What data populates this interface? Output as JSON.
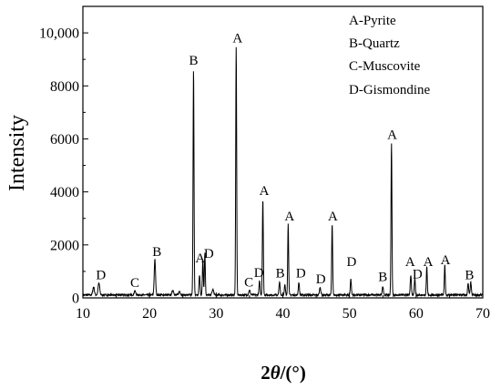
{
  "chart_data": {
    "type": "line",
    "title": "",
    "xlabel_main": "2",
    "xlabel_theta": "θ",
    "xlabel_unit": "/(°)",
    "ylabel": "Intensity",
    "xlim": [
      10,
      70
    ],
    "ylim": [
      0,
      11000
    ],
    "x_ticks": [
      10,
      20,
      30,
      40,
      50,
      60,
      70
    ],
    "x_tick_labels": [
      "10",
      "20",
      "30",
      "40",
      "50",
      "60",
      "70"
    ],
    "y_ticks": [
      0,
      2000,
      4000,
      6000,
      8000,
      10000
    ],
    "y_tick_labels": [
      "0",
      "2000",
      "4000",
      "6000",
      "8000",
      "10,000"
    ],
    "grid": false,
    "legend_position": "top-right",
    "legend": [
      "A-Pyrite",
      "B-Quartz",
      "C-Muscovite",
      "D-Gismondine"
    ],
    "peaks": [
      {
        "x": 11.6,
        "y": 300,
        "w": 0.12
      },
      {
        "x": 12.4,
        "y": 450,
        "w": 0.12
      },
      {
        "x": 17.8,
        "y": 150,
        "w": 0.12
      },
      {
        "x": 20.8,
        "y": 1330,
        "w": 0.1
      },
      {
        "x": 23.5,
        "y": 180,
        "w": 0.12
      },
      {
        "x": 24.5,
        "y": 140,
        "w": 0.12
      },
      {
        "x": 26.6,
        "y": 8550,
        "w": 0.07
      },
      {
        "x": 27.5,
        "y": 750,
        "w": 0.08
      },
      {
        "x": 28.0,
        "y": 1350,
        "w": 0.07
      },
      {
        "x": 28.3,
        "y": 1600,
        "w": 0.07
      },
      {
        "x": 29.5,
        "y": 200,
        "w": 0.12
      },
      {
        "x": 33.0,
        "y": 9400,
        "w": 0.07
      },
      {
        "x": 35.0,
        "y": 170,
        "w": 0.12
      },
      {
        "x": 36.5,
        "y": 520,
        "w": 0.08
      },
      {
        "x": 37.0,
        "y": 3650,
        "w": 0.07
      },
      {
        "x": 39.5,
        "y": 500,
        "w": 0.08
      },
      {
        "x": 40.3,
        "y": 380,
        "w": 0.08
      },
      {
        "x": 40.8,
        "y": 2680,
        "w": 0.07
      },
      {
        "x": 42.4,
        "y": 480,
        "w": 0.08
      },
      {
        "x": 45.6,
        "y": 280,
        "w": 0.1
      },
      {
        "x": 47.4,
        "y": 2680,
        "w": 0.07
      },
      {
        "x": 50.2,
        "y": 600,
        "w": 0.08
      },
      {
        "x": 55.0,
        "y": 300,
        "w": 0.1
      },
      {
        "x": 56.3,
        "y": 5750,
        "w": 0.07
      },
      {
        "x": 59.2,
        "y": 770,
        "w": 0.08
      },
      {
        "x": 59.8,
        "y": 620,
        "w": 0.08
      },
      {
        "x": 61.6,
        "y": 1050,
        "w": 0.07
      },
      {
        "x": 64.3,
        "y": 1150,
        "w": 0.07
      },
      {
        "x": 67.8,
        "y": 430,
        "w": 0.08
      },
      {
        "x": 68.2,
        "y": 480,
        "w": 0.08
      }
    ],
    "peak_labels": [
      {
        "x": 12.7,
        "y": 560,
        "label": "D"
      },
      {
        "x": 17.8,
        "y": 270,
        "label": "C"
      },
      {
        "x": 21.1,
        "y": 1450,
        "label": "B"
      },
      {
        "x": 26.6,
        "y": 8660,
        "label": "B"
      },
      {
        "x": 27.6,
        "y": 1200,
        "label": "A"
      },
      {
        "x": 28.9,
        "y": 1380,
        "label": "D"
      },
      {
        "x": 33.2,
        "y": 9500,
        "label": "A"
      },
      {
        "x": 34.9,
        "y": 300,
        "label": "C"
      },
      {
        "x": 36.4,
        "y": 650,
        "label": "D"
      },
      {
        "x": 37.2,
        "y": 3750,
        "label": "A"
      },
      {
        "x": 39.6,
        "y": 630,
        "label": "B"
      },
      {
        "x": 41.0,
        "y": 2790,
        "label": "A"
      },
      {
        "x": 42.7,
        "y": 630,
        "label": "D"
      },
      {
        "x": 45.7,
        "y": 420,
        "label": "D"
      },
      {
        "x": 47.5,
        "y": 2790,
        "label": "A"
      },
      {
        "x": 50.3,
        "y": 1060,
        "label": "D"
      },
      {
        "x": 55.0,
        "y": 490,
        "label": "B"
      },
      {
        "x": 56.4,
        "y": 5860,
        "label": "A"
      },
      {
        "x": 59.1,
        "y": 1060,
        "label": "A"
      },
      {
        "x": 60.2,
        "y": 610,
        "label": "D"
      },
      {
        "x": 61.8,
        "y": 1060,
        "label": "A"
      },
      {
        "x": 64.4,
        "y": 1140,
        "label": "A"
      },
      {
        "x": 68.0,
        "y": 560,
        "label": "B"
      }
    ],
    "baseline": 110
  }
}
